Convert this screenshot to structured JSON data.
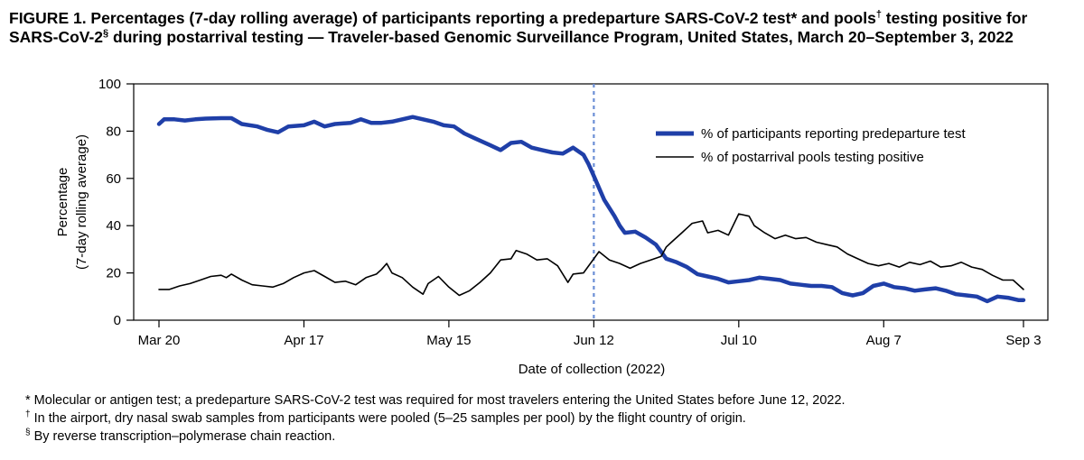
{
  "figure": {
    "title_prefix": "FIGURE 1. Percentages (7-day rolling average) of participants reporting a predeparture SARS-CoV-2 test",
    "title_mark1": "*",
    "title_mid1": " and pools",
    "title_mark2": "†",
    "title_mid2": " testing positive for SARS-CoV-2",
    "title_mark3": "§",
    "title_suffix": " during postarrival testing — Traveler-based Genomic Surveillance Program, United States, March 20–September 3, 2022"
  },
  "footnotes": [
    {
      "symbol": "*",
      "text": " Molecular or antigen test; a predeparture SARS-CoV-2 test was required for most travelers entering the United States before June 12, 2022."
    },
    {
      "symbol": "†",
      "text": " In the airport, dry nasal swab samples from participants were pooled (5–25 samples per pool) by the flight country of origin."
    },
    {
      "symbol": "§",
      "text": " By reverse transcription–polymerase chain reaction."
    }
  ],
  "chart_data": {
    "type": "line",
    "xlabel": "Date of collection (2022)",
    "ylabel_line1": "Percentage",
    "ylabel_line2": "(7-day rolling average)",
    "ylim": [
      0,
      100
    ],
    "yticks": [
      0,
      20,
      40,
      60,
      80,
      100
    ],
    "x_range": [
      "2022-03-20",
      "2022-09-03"
    ],
    "xticks": [
      {
        "date": "2022-03-20",
        "label": "Mar 20"
      },
      {
        "date": "2022-04-17",
        "label": "Apr 17"
      },
      {
        "date": "2022-05-15",
        "label": "May 15"
      },
      {
        "date": "2022-06-12",
        "label": "Jun 12"
      },
      {
        "date": "2022-07-10",
        "label": "Jul 10"
      },
      {
        "date": "2022-08-07",
        "label": "Aug 7"
      },
      {
        "date": "2022-09-03",
        "label": "Sep 3"
      }
    ],
    "reference_line": {
      "date": "2022-06-12",
      "style": "dashed",
      "color": "#6b8fd6"
    },
    "legend_position": "top-right",
    "grid": false,
    "series": [
      {
        "name": "% of participants reporting predeparture test",
        "color": "#1f3fa8",
        "points": [
          [
            "2022-03-20",
            83
          ],
          [
            "2022-03-21",
            85
          ],
          [
            "2022-03-23",
            85
          ],
          [
            "2022-03-25",
            84.5
          ],
          [
            "2022-03-27",
            85
          ],
          [
            "2022-03-29",
            85.3
          ],
          [
            "2022-04-01",
            85.5
          ],
          [
            "2022-04-03",
            85.5
          ],
          [
            "2022-04-05",
            83
          ],
          [
            "2022-04-08",
            82
          ],
          [
            "2022-04-10",
            80.5
          ],
          [
            "2022-04-12",
            79.5
          ],
          [
            "2022-04-14",
            82
          ],
          [
            "2022-04-17",
            82.5
          ],
          [
            "2022-04-19",
            84
          ],
          [
            "2022-04-21",
            82
          ],
          [
            "2022-04-23",
            83
          ],
          [
            "2022-04-26",
            83.5
          ],
          [
            "2022-04-28",
            85
          ],
          [
            "2022-04-30",
            83.5
          ],
          [
            "2022-05-02",
            83.5
          ],
          [
            "2022-05-04",
            84
          ],
          [
            "2022-05-06",
            85
          ],
          [
            "2022-05-08",
            86
          ],
          [
            "2022-05-10",
            85
          ],
          [
            "2022-05-12",
            84
          ],
          [
            "2022-05-14",
            82.5
          ],
          [
            "2022-05-16",
            82
          ],
          [
            "2022-05-18",
            79
          ],
          [
            "2022-05-20",
            77
          ],
          [
            "2022-05-23",
            74
          ],
          [
            "2022-05-25",
            72
          ],
          [
            "2022-05-27",
            75
          ],
          [
            "2022-05-29",
            75.5
          ],
          [
            "2022-05-31",
            73
          ],
          [
            "2022-06-02",
            72
          ],
          [
            "2022-06-04",
            71
          ],
          [
            "2022-06-06",
            70.5
          ],
          [
            "2022-06-08",
            73
          ],
          [
            "2022-06-10",
            70
          ],
          [
            "2022-06-11",
            66
          ],
          [
            "2022-06-12",
            61
          ],
          [
            "2022-06-13",
            56
          ],
          [
            "2022-06-14",
            51
          ],
          [
            "2022-06-16",
            44
          ],
          [
            "2022-06-17",
            40
          ],
          [
            "2022-06-18",
            37
          ],
          [
            "2022-06-20",
            37.5
          ],
          [
            "2022-06-22",
            35
          ],
          [
            "2022-06-24",
            32
          ],
          [
            "2022-06-26",
            26
          ],
          [
            "2022-06-28",
            24.5
          ],
          [
            "2022-06-30",
            22.5
          ],
          [
            "2022-07-02",
            19.5
          ],
          [
            "2022-07-04",
            18.5
          ],
          [
            "2022-07-06",
            17.5
          ],
          [
            "2022-07-08",
            16
          ],
          [
            "2022-07-10",
            16.5
          ],
          [
            "2022-07-12",
            17
          ],
          [
            "2022-07-14",
            18
          ],
          [
            "2022-07-16",
            17.5
          ],
          [
            "2022-07-18",
            17
          ],
          [
            "2022-07-20",
            15.5
          ],
          [
            "2022-07-22",
            15
          ],
          [
            "2022-07-24",
            14.5
          ],
          [
            "2022-07-26",
            14.5
          ],
          [
            "2022-07-28",
            14
          ],
          [
            "2022-07-30",
            11.5
          ],
          [
            "2022-08-01",
            10.5
          ],
          [
            "2022-08-03",
            11.5
          ],
          [
            "2022-08-05",
            14.5
          ],
          [
            "2022-08-07",
            15.5
          ],
          [
            "2022-08-09",
            14
          ],
          [
            "2022-08-11",
            13.5
          ],
          [
            "2022-08-13",
            12.5
          ],
          [
            "2022-08-15",
            13
          ],
          [
            "2022-08-17",
            13.5
          ],
          [
            "2022-08-19",
            12.5
          ],
          [
            "2022-08-21",
            11
          ],
          [
            "2022-08-23",
            10.5
          ],
          [
            "2022-08-25",
            10
          ],
          [
            "2022-08-27",
            8
          ],
          [
            "2022-08-29",
            10
          ],
          [
            "2022-08-31",
            9.5
          ],
          [
            "2022-09-02",
            8.5
          ],
          [
            "2022-09-03",
            8.5
          ]
        ]
      },
      {
        "name": "% of postarrival pools testing positive",
        "color": "#000000",
        "points": [
          [
            "2022-03-20",
            13
          ],
          [
            "2022-03-22",
            13
          ],
          [
            "2022-03-24",
            14.5
          ],
          [
            "2022-03-26",
            15.5
          ],
          [
            "2022-03-28",
            17
          ],
          [
            "2022-03-30",
            18.5
          ],
          [
            "2022-04-01",
            19
          ],
          [
            "2022-04-02",
            18
          ],
          [
            "2022-04-03",
            19.5
          ],
          [
            "2022-04-05",
            17
          ],
          [
            "2022-04-07",
            15
          ],
          [
            "2022-04-09",
            14.5
          ],
          [
            "2022-04-11",
            14
          ],
          [
            "2022-04-13",
            15.5
          ],
          [
            "2022-04-15",
            18
          ],
          [
            "2022-04-17",
            20
          ],
          [
            "2022-04-19",
            21
          ],
          [
            "2022-04-21",
            18.5
          ],
          [
            "2022-04-23",
            16
          ],
          [
            "2022-04-25",
            16.5
          ],
          [
            "2022-04-27",
            15
          ],
          [
            "2022-04-29",
            18
          ],
          [
            "2022-05-01",
            19.5
          ],
          [
            "2022-05-02",
            21.5
          ],
          [
            "2022-05-03",
            24
          ],
          [
            "2022-05-04",
            20
          ],
          [
            "2022-05-06",
            18
          ],
          [
            "2022-05-08",
            14
          ],
          [
            "2022-05-10",
            11
          ],
          [
            "2022-05-11",
            15.5
          ],
          [
            "2022-05-13",
            18.5
          ],
          [
            "2022-05-15",
            14
          ],
          [
            "2022-05-17",
            10.5
          ],
          [
            "2022-05-19",
            12.5
          ],
          [
            "2022-05-21",
            16
          ],
          [
            "2022-05-23",
            20
          ],
          [
            "2022-05-25",
            25.5
          ],
          [
            "2022-05-27",
            26
          ],
          [
            "2022-05-28",
            29.5
          ],
          [
            "2022-05-30",
            28
          ],
          [
            "2022-06-01",
            25.5
          ],
          [
            "2022-06-03",
            26
          ],
          [
            "2022-06-05",
            23
          ],
          [
            "2022-06-07",
            16
          ],
          [
            "2022-06-08",
            19.5
          ],
          [
            "2022-06-10",
            20
          ],
          [
            "2022-06-12",
            26
          ],
          [
            "2022-06-13",
            29
          ],
          [
            "2022-06-15",
            25.5
          ],
          [
            "2022-06-17",
            24
          ],
          [
            "2022-06-19",
            22
          ],
          [
            "2022-06-21",
            24
          ],
          [
            "2022-06-23",
            25.5
          ],
          [
            "2022-06-25",
            27
          ],
          [
            "2022-06-26",
            31
          ],
          [
            "2022-06-27",
            33
          ],
          [
            "2022-06-29",
            37
          ],
          [
            "2022-07-01",
            41
          ],
          [
            "2022-07-03",
            42
          ],
          [
            "2022-07-04",
            37
          ],
          [
            "2022-07-06",
            38
          ],
          [
            "2022-07-08",
            36
          ],
          [
            "2022-07-10",
            45
          ],
          [
            "2022-07-12",
            44
          ],
          [
            "2022-07-13",
            40
          ],
          [
            "2022-07-15",
            37
          ],
          [
            "2022-07-17",
            34.5
          ],
          [
            "2022-07-19",
            36
          ],
          [
            "2022-07-21",
            34.5
          ],
          [
            "2022-07-23",
            35
          ],
          [
            "2022-07-25",
            33
          ],
          [
            "2022-07-27",
            32
          ],
          [
            "2022-07-29",
            31
          ],
          [
            "2022-07-31",
            28
          ],
          [
            "2022-08-02",
            26
          ],
          [
            "2022-08-04",
            24
          ],
          [
            "2022-08-06",
            23
          ],
          [
            "2022-08-08",
            24
          ],
          [
            "2022-08-10",
            22.5
          ],
          [
            "2022-08-12",
            24.5
          ],
          [
            "2022-08-14",
            23.5
          ],
          [
            "2022-08-16",
            25
          ],
          [
            "2022-08-18",
            22.5
          ],
          [
            "2022-08-20",
            23
          ],
          [
            "2022-08-22",
            24.5
          ],
          [
            "2022-08-24",
            22.5
          ],
          [
            "2022-08-26",
            21.5
          ],
          [
            "2022-08-28",
            19
          ],
          [
            "2022-08-30",
            17
          ],
          [
            "2022-09-01",
            17
          ],
          [
            "2022-09-03",
            13
          ]
        ]
      }
    ]
  }
}
